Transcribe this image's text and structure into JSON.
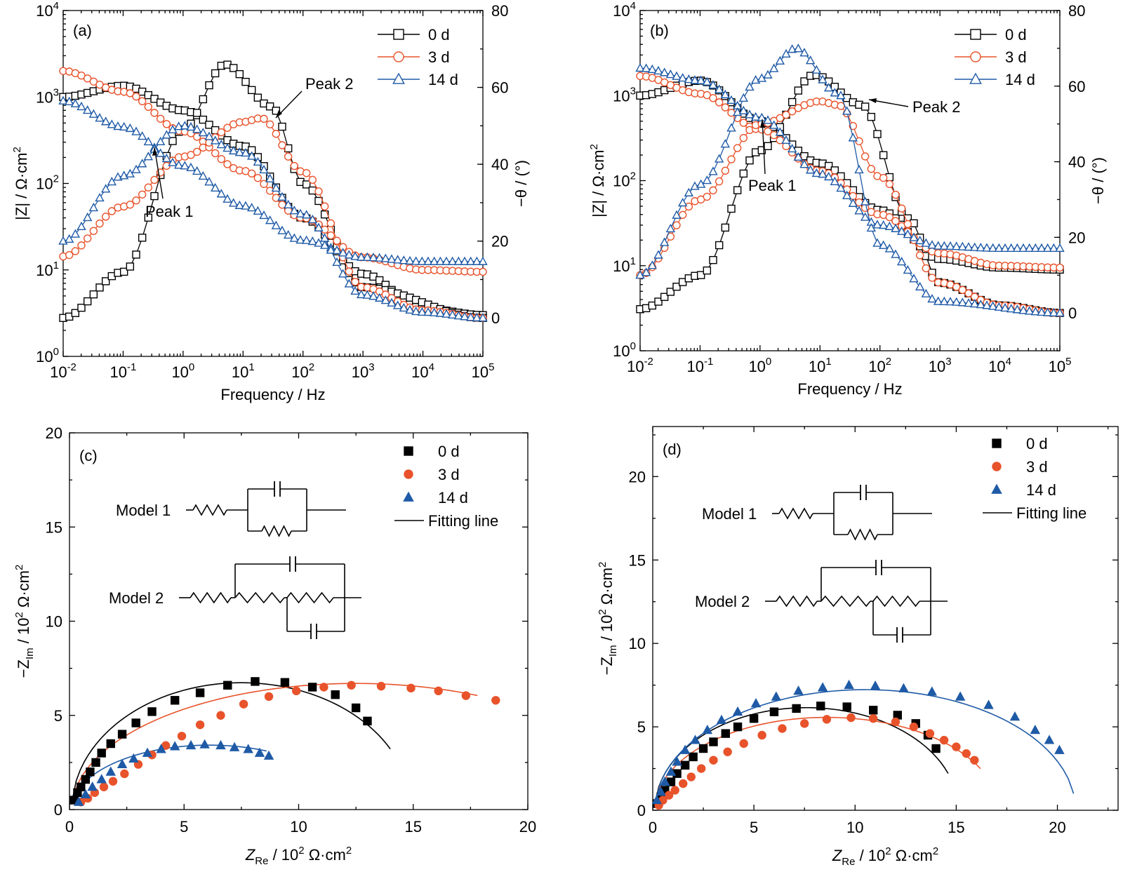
{
  "colors": {
    "d0": "#000000",
    "d3": "#e8532b",
    "d14": "#1f5aa6"
  },
  "chart_data": [
    {
      "panel": "(a)",
      "type": "line",
      "x_scale": "log",
      "xlim": [
        0.01,
        100000
      ],
      "xlabel": "Frequency / Hz",
      "ylabel_left": "|Z| / Ω·cm²",
      "ylabel_right": "−θ / (°)",
      "ylim_left": [
        1,
        10000
      ],
      "ylim_right": [
        -10,
        80
      ],
      "xticks": [
        "10⁻²",
        "10⁻¹",
        "10⁰",
        "10¹",
        "10²",
        "10³",
        "10⁴",
        "10⁵"
      ],
      "yticks_left": [
        "10⁰",
        "10¹",
        "10²",
        "10³",
        "10⁴"
      ],
      "yticks_right": [
        "0",
        "20",
        "40",
        "60",
        "80"
      ],
      "legend": [
        "0 d",
        "3 d",
        "14 d"
      ],
      "annotations": [
        "Peak 1",
        "Peak 2"
      ],
      "series": [
        {
          "name": "0 d",
          "marker": "square",
          "Z_anchors": [
            [
              0.01,
              1000
            ],
            [
              0.1,
              1350
            ],
            [
              1,
              700
            ],
            [
              10,
              270
            ],
            [
              100,
              40
            ],
            [
              1000,
              9
            ],
            [
              10000,
              3.6
            ],
            [
              100000,
              3.0
            ]
          ],
          "theta_anchors": [
            [
              0.01,
              0
            ],
            [
              0.1,
              12
            ],
            [
              1,
              49
            ],
            [
              5,
              66
            ],
            [
              30,
              55
            ],
            [
              100,
              35
            ],
            [
              1000,
              8
            ],
            [
              100000,
              0
            ]
          ]
        },
        {
          "name": "3 d",
          "marker": "circle",
          "Z_anchors": [
            [
              0.01,
              2000
            ],
            [
              0.1,
              1150
            ],
            [
              1,
              400
            ],
            [
              10,
              140
            ],
            [
              100,
              40
            ],
            [
              1000,
              14
            ],
            [
              10000,
              10
            ],
            [
              100000,
              9.5
            ]
          ],
          "theta_anchors": [
            [
              0.01,
              16
            ],
            [
              0.1,
              29
            ],
            [
              1,
              42
            ],
            [
              10,
              51
            ],
            [
              20,
              52
            ],
            [
              100,
              38
            ],
            [
              1000,
              8
            ],
            [
              10000,
              2
            ],
            [
              100000,
              0
            ]
          ]
        },
        {
          "name": "14 d",
          "marker": "triangle",
          "Z_anchors": [
            [
              0.01,
              900
            ],
            [
              0.1,
              450
            ],
            [
              1,
              160
            ],
            [
              10,
              55
            ],
            [
              100,
              22
            ],
            [
              1000,
              14
            ],
            [
              10000,
              12.5
            ],
            [
              100000,
              12.5
            ]
          ],
          "theta_anchors": [
            [
              0.01,
              20
            ],
            [
              0.1,
              37
            ],
            [
              1,
              50
            ],
            [
              10,
              43
            ],
            [
              100,
              27
            ],
            [
              1000,
              6
            ],
            [
              10000,
              1.5
            ],
            [
              100000,
              0
            ]
          ]
        }
      ]
    },
    {
      "panel": "(b)",
      "type": "line",
      "x_scale": "log",
      "xlim": [
        0.01,
        100000
      ],
      "xlabel": "Frequency / Hz",
      "ylabel_left": "|Z| / Ω·cm²",
      "ylabel_right": "−θ / (°)",
      "ylim_left": [
        1,
        10000
      ],
      "ylim_right": [
        -10,
        80
      ],
      "xticks": [
        "10⁻²",
        "10⁻¹",
        "10⁰",
        "10¹",
        "10²",
        "10³",
        "10⁴",
        "10⁵"
      ],
      "yticks_left": [
        "10⁰",
        "10¹",
        "10²",
        "10³",
        "10⁴"
      ],
      "yticks_right": [
        "0",
        "20",
        "40",
        "60",
        "80"
      ],
      "legend": [
        "0 d",
        "3 d",
        "14 d"
      ],
      "annotations": [
        "Peak 1",
        "Peak 2"
      ],
      "series": [
        {
          "name": "0 d",
          "marker": "square",
          "Z_anchors": [
            [
              0.01,
              1000
            ],
            [
              0.1,
              1500
            ],
            [
              1,
              500
            ],
            [
              10,
              160
            ],
            [
              100,
              45
            ],
            [
              1000,
              12
            ],
            [
              10000,
              9.5
            ],
            [
              100000,
              9
            ]
          ],
          "theta_anchors": [
            [
              0.01,
              1
            ],
            [
              0.1,
              10
            ],
            [
              1,
              43
            ],
            [
              8,
              63
            ],
            [
              50,
              55
            ],
            [
              300,
              25
            ],
            [
              1000,
              8
            ],
            [
              10000,
              2
            ],
            [
              100000,
              0
            ]
          ]
        },
        {
          "name": "3 d",
          "marker": "circle",
          "Z_anchors": [
            [
              0.01,
              1700
            ],
            [
              0.1,
              1050
            ],
            [
              1,
              400
            ],
            [
              10,
              130
            ],
            [
              100,
              40
            ],
            [
              1000,
              14
            ],
            [
              10000,
              10
            ],
            [
              100000,
              9.5
            ]
          ],
          "theta_anchors": [
            [
              0.01,
              10
            ],
            [
              0.1,
              30
            ],
            [
              1,
              50
            ],
            [
              10,
              56
            ],
            [
              20,
              55
            ],
            [
              100,
              36
            ],
            [
              1000,
              8
            ],
            [
              10000,
              2
            ],
            [
              100000,
              0
            ]
          ]
        },
        {
          "name": "14 d",
          "marker": "triangle",
          "Z_anchors": [
            [
              0.01,
              2100
            ],
            [
              0.1,
              1500
            ],
            [
              1,
              550
            ],
            [
              10,
              120
            ],
            [
              100,
              30
            ],
            [
              1000,
              17
            ],
            [
              10000,
              16
            ],
            [
              100000,
              16
            ]
          ],
          "theta_anchors": [
            [
              0.01,
              10
            ],
            [
              0.1,
              34
            ],
            [
              1,
              62
            ],
            [
              4,
              70
            ],
            [
              20,
              58
            ],
            [
              100,
              18
            ],
            [
              1000,
              3
            ],
            [
              100000,
              0
            ]
          ]
        }
      ]
    },
    {
      "panel": "(c)",
      "type": "scatter",
      "xlabel": "Z_Re / 10² Ω·cm²",
      "ylabel": "−Z_Im / 10² Ω·cm²",
      "xlim": [
        0,
        20
      ],
      "ylim": [
        0,
        20
      ],
      "xticks": [
        "0",
        "5",
        "10",
        "15",
        "20"
      ],
      "yticks": [
        "0",
        "5",
        "10",
        "15",
        "20"
      ],
      "legend": [
        "0 d",
        "3 d",
        "14 d",
        "Fitting line"
      ],
      "inset_labels": [
        "Model 1",
        "Model 2"
      ],
      "series": [
        {
          "name": "0 d",
          "marker": "square",
          "x": [
            0.2,
            0.35,
            0.5,
            0.7,
            0.9,
            1.15,
            1.4,
            1.8,
            2.3,
            2.9,
            3.6,
            4.6,
            5.7,
            6.9,
            8.1,
            9.4,
            10.6,
            11.6,
            12.5,
            13.0
          ],
          "y": [
            0.5,
            0.9,
            1.2,
            1.6,
            2.0,
            2.5,
            3.0,
            3.5,
            4.0,
            4.6,
            5.2,
            5.8,
            6.2,
            6.6,
            6.8,
            6.75,
            6.5,
            6.1,
            5.4,
            4.7
          ]
        },
        {
          "name": "3 d",
          "marker": "circle",
          "x": [
            0.5,
            0.8,
            1.1,
            1.5,
            1.9,
            2.4,
            3.0,
            3.6,
            4.2,
            4.9,
            5.7,
            6.6,
            7.6,
            8.7,
            9.9,
            11.1,
            12.3,
            13.6,
            14.9,
            16.1,
            17.3,
            18.6
          ],
          "y": [
            0.4,
            0.6,
            0.9,
            1.2,
            1.5,
            1.9,
            2.4,
            2.9,
            3.4,
            3.9,
            4.5,
            5.0,
            5.6,
            6.0,
            6.3,
            6.5,
            6.6,
            6.55,
            6.45,
            6.3,
            6.05,
            5.8
          ]
        },
        {
          "name": "14 d",
          "marker": "triangle",
          "x": [
            0.4,
            0.7,
            1.0,
            1.4,
            1.8,
            2.3,
            2.8,
            3.4,
            4.0,
            4.6,
            5.3,
            5.9,
            6.6,
            7.2,
            7.8,
            8.3,
            8.7
          ],
          "y": [
            0.4,
            0.8,
            1.2,
            1.6,
            2.0,
            2.4,
            2.7,
            3.0,
            3.2,
            3.35,
            3.4,
            3.45,
            3.4,
            3.3,
            3.2,
            3.0,
            2.85
          ]
        }
      ],
      "fits": [
        {
          "name": "0 d",
          "cx": 7.5,
          "r": 7.4,
          "yscale": 0.91,
          "x_end": 14.0
        },
        {
          "name": "3 d",
          "cx": 12.5,
          "r": 12.4,
          "yscale": 0.54,
          "x_end": 17.8
        },
        {
          "name": "14 d",
          "cx": 6.1,
          "r": 6.0,
          "yscale": 0.57,
          "x_end": 8.6
        }
      ]
    },
    {
      "panel": "(d)",
      "type": "scatter",
      "xlabel": "Z_Re / 10² Ω·cm²",
      "ylabel": "−Z_Im / 10² Ω·cm²",
      "xlim": [
        0,
        23
      ],
      "ylim": [
        0,
        23
      ],
      "xticks": [
        "0",
        "5",
        "10",
        "15",
        "20"
      ],
      "yticks": [
        "0",
        "5",
        "10",
        "15",
        "20"
      ],
      "legend": [
        "0 d",
        "3 d",
        "14 d",
        "Fitting line"
      ],
      "inset_labels": [
        "Model 1",
        "Model 2"
      ],
      "series": [
        {
          "name": "0 d",
          "marker": "square",
          "x": [
            0.2,
            0.4,
            0.6,
            0.9,
            1.2,
            1.6,
            2.0,
            2.5,
            3.0,
            3.6,
            4.2,
            5.0,
            6.0,
            7.1,
            8.3,
            9.6,
            10.9,
            12.1,
            13.0,
            13.6,
            14.0
          ],
          "y": [
            0.4,
            0.8,
            1.2,
            1.7,
            2.2,
            2.7,
            3.2,
            3.7,
            4.1,
            4.6,
            5.0,
            5.5,
            5.9,
            6.1,
            6.25,
            6.2,
            6.0,
            5.7,
            5.2,
            4.5,
            3.7
          ]
        },
        {
          "name": "3 d",
          "marker": "circle",
          "x": [
            0.3,
            0.5,
            0.8,
            1.1,
            1.5,
            1.9,
            2.4,
            3.0,
            3.7,
            4.5,
            5.4,
            6.4,
            7.5,
            8.6,
            9.8,
            10.9,
            12.0,
            12.9,
            13.7,
            14.4,
            15.0,
            15.5,
            15.9
          ],
          "y": [
            0.3,
            0.6,
            0.9,
            1.2,
            1.6,
            2.0,
            2.5,
            3.0,
            3.5,
            4.0,
            4.5,
            4.9,
            5.2,
            5.45,
            5.55,
            5.5,
            5.3,
            5.0,
            4.6,
            4.2,
            3.8,
            3.4,
            3.0
          ]
        },
        {
          "name": "14 d",
          "marker": "triangle",
          "x": [
            0.2,
            0.4,
            0.6,
            0.9,
            1.2,
            1.6,
            2.1,
            2.7,
            3.4,
            4.2,
            5.1,
            6.1,
            7.2,
            8.4,
            9.7,
            11.0,
            12.4,
            13.8,
            15.2,
            16.6,
            17.9,
            18.9,
            19.6,
            20.1
          ],
          "y": [
            0.6,
            1.1,
            1.7,
            2.3,
            2.9,
            3.6,
            4.2,
            4.8,
            5.4,
            5.9,
            6.4,
            6.8,
            7.15,
            7.35,
            7.5,
            7.45,
            7.3,
            7.1,
            6.8,
            6.3,
            5.6,
            4.8,
            4.2,
            3.6
          ]
        }
      ],
      "fits": [
        {
          "name": "0 d",
          "cx": 7.6,
          "r": 7.5,
          "yscale": 0.82,
          "x_end": 14.6
        },
        {
          "name": "3 d",
          "cx": 8.6,
          "r": 8.5,
          "yscale": 0.655,
          "x_end": 16.2
        },
        {
          "name": "14 d",
          "cx": 10.5,
          "r": 10.4,
          "yscale": 0.695,
          "x_end": 20.8
        }
      ]
    }
  ]
}
